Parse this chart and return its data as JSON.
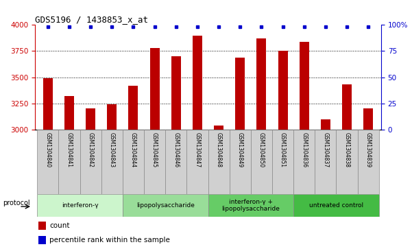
{
  "title": "GDS5196 / 1438853_x_at",
  "samples": [
    "GSM1304840",
    "GSM1304841",
    "GSM1304842",
    "GSM1304843",
    "GSM1304844",
    "GSM1304845",
    "GSM1304846",
    "GSM1304847",
    "GSM1304848",
    "GSM1304849",
    "GSM1304850",
    "GSM1304851",
    "GSM1304836",
    "GSM1304837",
    "GSM1304838",
    "GSM1304839"
  ],
  "counts": [
    3490,
    3320,
    3200,
    3240,
    3420,
    3780,
    3700,
    3900,
    3040,
    3690,
    3870,
    3750,
    3840,
    3100,
    3430,
    3200
  ],
  "percentiles": [
    98,
    98,
    98,
    98,
    98,
    98,
    98,
    98,
    98,
    98,
    98,
    98,
    98,
    98,
    98,
    98
  ],
  "ylim_left": [
    3000,
    4000
  ],
  "ylim_right": [
    0,
    100
  ],
  "yticks_left": [
    3000,
    3250,
    3500,
    3750,
    4000
  ],
  "yticks_right": [
    0,
    25,
    50,
    75,
    100
  ],
  "ytick_labels_right": [
    "0",
    "25",
    "50",
    "75",
    "100%"
  ],
  "bar_color": "#bb0000",
  "dot_color": "#0000cc",
  "groups": [
    {
      "label": "interferon-γ",
      "indices": [
        0,
        1,
        2,
        3
      ],
      "color": "#ccf5cc"
    },
    {
      "label": "lipopolysaccharide",
      "indices": [
        4,
        5,
        6,
        7
      ],
      "color": "#99dd99"
    },
    {
      "label": "interferon-γ +\nlipopolysaccharide",
      "indices": [
        8,
        9,
        10,
        11
      ],
      "color": "#66cc66"
    },
    {
      "label": "untreated control",
      "indices": [
        12,
        13,
        14,
        15
      ],
      "color": "#44bb44"
    }
  ],
  "protocol_label": "protocol",
  "legend_count_label": "count",
  "legend_pct_label": "percentile rank within the sample",
  "tick_color_left": "#cc0000",
  "tick_color_right": "#0000cc",
  "grid_dotted_vals": [
    3250,
    3500,
    3750
  ],
  "label_box_color": "#d0d0d0",
  "label_box_edge": "#888888"
}
